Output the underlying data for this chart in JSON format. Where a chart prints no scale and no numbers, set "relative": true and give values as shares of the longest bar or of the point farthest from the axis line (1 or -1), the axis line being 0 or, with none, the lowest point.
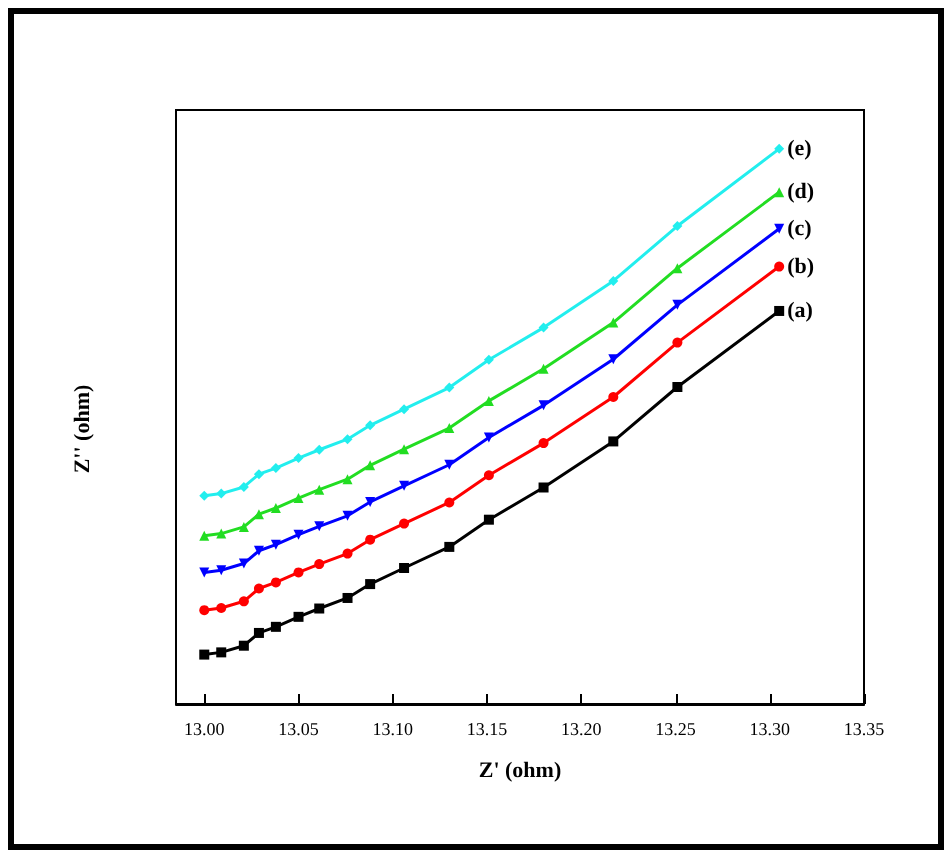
{
  "chart_data": {
    "type": "line",
    "relative": true,
    "xlabel": "Z' (ohm)",
    "ylabel": "Z'' (ohm)",
    "x": [
      13.0,
      13.009,
      13.021,
      13.029,
      13.038,
      13.05,
      13.061,
      13.076,
      13.088,
      13.106,
      13.13,
      13.151,
      13.18,
      13.217,
      13.251,
      13.305
    ],
    "xlim": [
      12.985,
      13.35
    ],
    "xticks": [
      {
        "value": 13,
        "label": "13.00"
      },
      13.05,
      {
        "value": 13.1,
        "label": "13.10"
      },
      13.15,
      {
        "value": 13.2,
        "label": "13.20"
      },
      13.25,
      {
        "value": 13.3,
        "label": "13.30"
      },
      13.35
    ],
    "grid": false,
    "legend": false,
    "line_style": "solid",
    "series": [
      {
        "name": "(a)",
        "color": "#000000",
        "marker": "square",
        "values": [
          0.089,
          0.093,
          0.105,
          0.128,
          0.139,
          0.157,
          0.172,
          0.191,
          0.216,
          0.245,
          0.283,
          0.332,
          0.39,
          0.473,
          0.571,
          0.708
        ]
      },
      {
        "name": "(b)",
        "color": "#ff0000",
        "marker": "circle",
        "values": [
          0.169,
          0.173,
          0.185,
          0.208,
          0.219,
          0.237,
          0.252,
          0.271,
          0.296,
          0.325,
          0.363,
          0.412,
          0.47,
          0.553,
          0.651,
          0.788
        ]
      },
      {
        "name": "(c)",
        "color": "#0000ff",
        "marker": "triangle-down",
        "values": [
          0.237,
          0.241,
          0.253,
          0.276,
          0.287,
          0.305,
          0.32,
          0.339,
          0.364,
          0.393,
          0.431,
          0.48,
          0.538,
          0.621,
          0.719,
          0.856
        ]
      },
      {
        "name": "(d)",
        "color": "#22dd22",
        "marker": "triangle",
        "values": [
          0.303,
          0.307,
          0.319,
          0.342,
          0.353,
          0.371,
          0.386,
          0.405,
          0.43,
          0.459,
          0.497,
          0.546,
          0.604,
          0.687,
          0.785,
          0.922
        ]
      },
      {
        "name": "(e)",
        "color": "#22eeee",
        "marker": "diamond",
        "values": [
          0.375,
          0.379,
          0.391,
          0.414,
          0.425,
          0.443,
          0.458,
          0.477,
          0.502,
          0.531,
          0.57,
          0.62,
          0.678,
          0.762,
          0.861,
          1.0
        ]
      }
    ]
  }
}
